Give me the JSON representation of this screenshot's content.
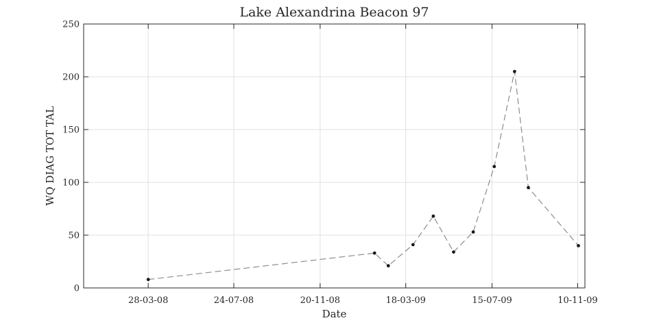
{
  "chart_data": {
    "type": "line",
    "title": "Lake Alexandrina Beacon 97",
    "xlabel": "Date",
    "ylabel": "WQ DIAG TOT TAL",
    "x_type": "date",
    "xlim": [
      "2007-12-30",
      "2009-11-20"
    ],
    "ylim": [
      0,
      250
    ],
    "yticks": [
      0,
      50,
      100,
      150,
      200,
      250
    ],
    "xticks": [
      {
        "date": "2008-03-28",
        "label": "28-03-08"
      },
      {
        "date": "2008-07-24",
        "label": "24-07-08"
      },
      {
        "date": "2008-11-20",
        "label": "20-11-08"
      },
      {
        "date": "2009-03-18",
        "label": "18-03-09"
      },
      {
        "date": "2009-07-15",
        "label": "15-07-09"
      },
      {
        "date": "2009-11-10",
        "label": "10-11-09"
      }
    ],
    "grid": true,
    "series": [
      {
        "line_style": "dashed",
        "line_color": "#8c8c8c",
        "marker_color": "#1a1a1a",
        "points": [
          {
            "x": "2008-03-28",
            "y": 8
          },
          {
            "x": "2009-02-03",
            "y": 33
          },
          {
            "x": "2009-02-22",
            "y": 21
          },
          {
            "x": "2009-03-28",
            "y": 41
          },
          {
            "x": "2009-04-25",
            "y": 68
          },
          {
            "x": "2009-05-23",
            "y": 34
          },
          {
            "x": "2009-06-19",
            "y": 53
          },
          {
            "x": "2009-07-18",
            "y": 115
          },
          {
            "x": "2009-08-15",
            "y": 205
          },
          {
            "x": "2009-09-03",
            "y": 95
          },
          {
            "x": "2009-11-11",
            "y": 40
          }
        ]
      }
    ]
  }
}
